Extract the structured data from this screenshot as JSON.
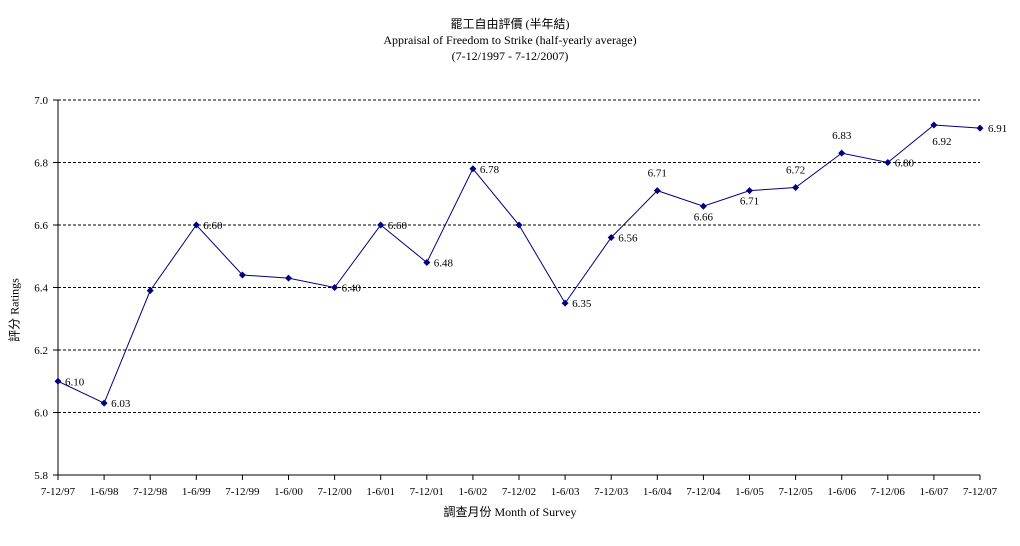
{
  "chart_data": {
    "type": "line",
    "title": "罷工自由評價 (半年結)",
    "subtitle": "Appraisal of Freedom to Strike (half-yearly average)",
    "subtitle2": "(7-12/1997 - 7-12/2007)",
    "xlabel": "調查月份 Month of Survey",
    "ylabel": "評分 Ratings",
    "ylim": [
      5.8,
      7.0
    ],
    "yticks": [
      "5.8",
      "6.0",
      "6.2",
      "6.4",
      "6.6",
      "6.8",
      "7.0"
    ],
    "grid": true,
    "categories": [
      "7-12/97",
      "1-6/98",
      "7-12/98",
      "1-6/99",
      "7-12/99",
      "1-6/00",
      "7-12/00",
      "1-6/01",
      "7-12/01",
      "1-6/02",
      "7-12/02",
      "1-6/03",
      "7-12/03",
      "1-6/04",
      "7-12/04",
      "1-6/05",
      "7-12/05",
      "1-6/06",
      "7-12/06",
      "1-6/07",
      "7-12/07"
    ],
    "series": [
      {
        "values": [
          6.1,
          6.03,
          6.39,
          6.6,
          6.44,
          6.43,
          6.4,
          6.6,
          6.48,
          6.78,
          6.6,
          6.35,
          6.56,
          6.71,
          6.66,
          6.71,
          6.72,
          6.83,
          6.8,
          6.92,
          6.91
        ],
        "labels": [
          "6.10",
          "6.03",
          "",
          "6.60",
          "",
          "",
          "6.40",
          "6.60",
          "6.48",
          "6.78",
          "",
          "6.35",
          "6.56",
          "6.71",
          "6.66",
          "6.71",
          "6.72",
          "6.83",
          "6.80",
          "6.92",
          "6.91"
        ],
        "color": "#000080"
      }
    ]
  }
}
